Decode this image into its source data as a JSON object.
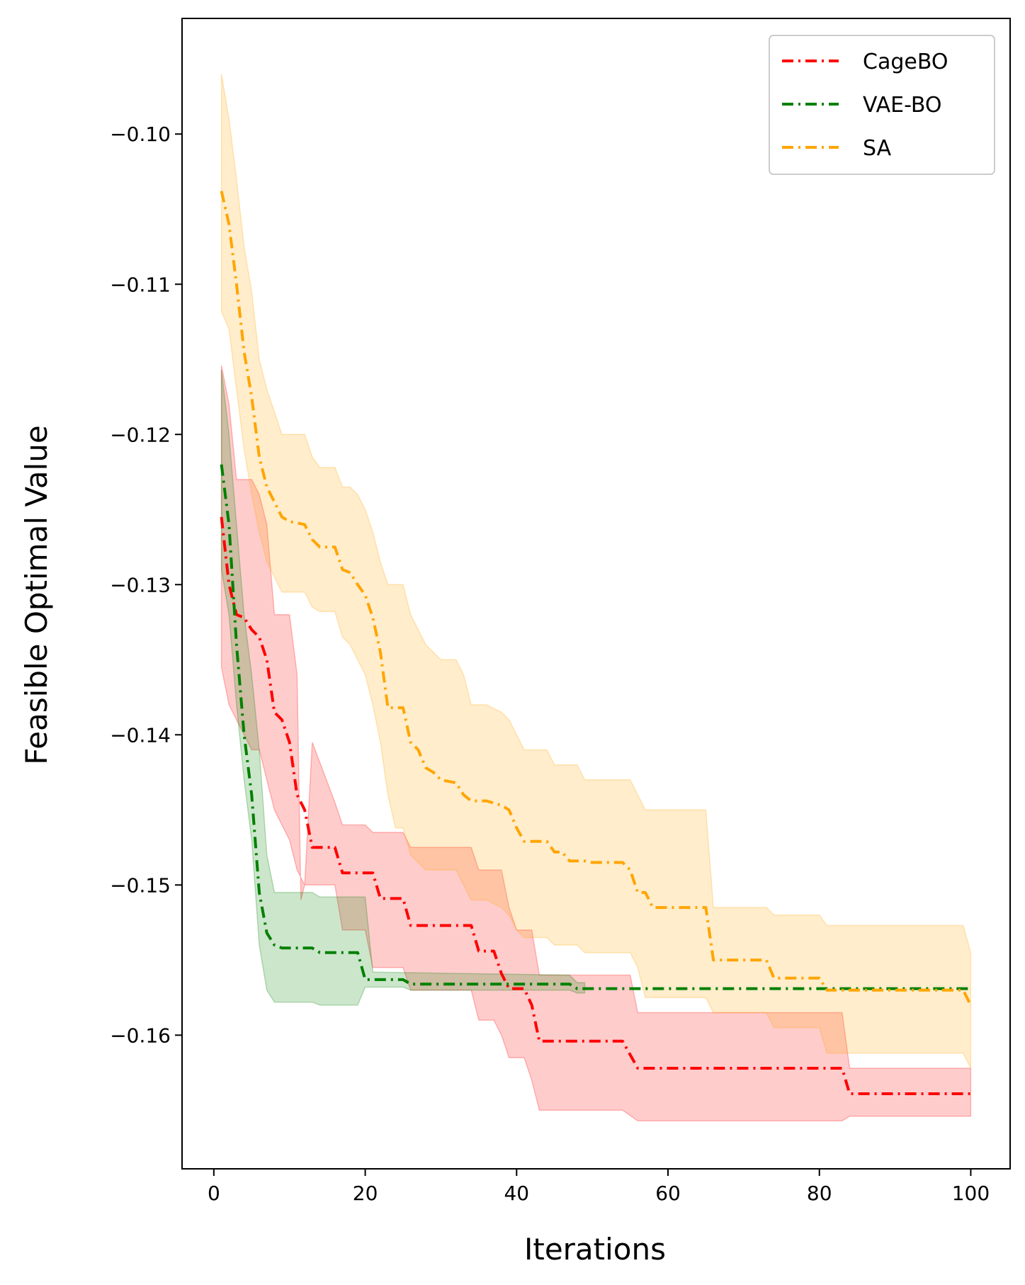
{
  "chart_data": {
    "type": "line",
    "title": "",
    "xlabel": "Iterations",
    "ylabel": "Feasible Optimal Value",
    "xlim": [
      -4.2,
      105.2
    ],
    "ylim": [
      -0.1689,
      -0.0923
    ],
    "xticks": [
      0,
      20,
      40,
      60,
      80,
      100
    ],
    "xtick_labels": [
      "0",
      "20",
      "40",
      "60",
      "80",
      "100"
    ],
    "yticks": [
      -0.1,
      -0.11,
      -0.12,
      -0.13,
      -0.14,
      -0.15,
      -0.16
    ],
    "ytick_labels": [
      "−0.10",
      "−0.11",
      "−0.12",
      "−0.13",
      "−0.14",
      "−0.15",
      "−0.16"
    ],
    "grid": false,
    "legend_position": "top-right",
    "series": [
      {
        "name": "CageBO",
        "color": "#ff0000",
        "fill_alpha": 0.2,
        "mean": [
          [
            1,
            -0.1255
          ],
          [
            2,
            -0.13
          ],
          [
            3,
            -0.132
          ],
          [
            4,
            -0.1322
          ],
          [
            5,
            -0.133
          ],
          [
            6,
            -0.1335
          ],
          [
            7,
            -0.135
          ],
          [
            8,
            -0.1385
          ],
          [
            9,
            -0.139
          ],
          [
            10,
            -0.1405
          ],
          [
            11,
            -0.144
          ],
          [
            12,
            -0.145
          ],
          [
            13,
            -0.1475
          ],
          [
            16,
            -0.1475
          ],
          [
            17,
            -0.1492
          ],
          [
            21,
            -0.1492
          ],
          [
            22,
            -0.1509
          ],
          [
            25,
            -0.1509
          ],
          [
            26,
            -0.1527
          ],
          [
            34,
            -0.1527
          ],
          [
            35,
            -0.1544
          ],
          [
            37,
            -0.1544
          ],
          [
            38,
            -0.1559
          ],
          [
            39,
            -0.1569
          ],
          [
            41,
            -0.1569
          ],
          [
            42,
            -0.158
          ],
          [
            43,
            -0.1604
          ],
          [
            54,
            -0.1604
          ],
          [
            56,
            -0.1622
          ],
          [
            83,
            -0.1622
          ],
          [
            84,
            -0.1639
          ],
          [
            100,
            -0.1639
          ]
        ],
        "upper": [
          [
            1,
            -0.1154
          ],
          [
            2,
            -0.118
          ],
          [
            3,
            -0.123
          ],
          [
            5,
            -0.123
          ],
          [
            6,
            -0.124
          ],
          [
            7,
            -0.126
          ],
          [
            8,
            -0.132
          ],
          [
            10,
            -0.132
          ],
          [
            11,
            -0.136
          ],
          [
            11.5,
            -0.151
          ],
          [
            12,
            -0.15
          ],
          [
            13,
            -0.1405
          ],
          [
            16,
            -0.1445
          ],
          [
            17,
            -0.146
          ],
          [
            20,
            -0.146
          ],
          [
            21,
            -0.1465
          ],
          [
            25,
            -0.1465
          ],
          [
            26,
            -0.1475
          ],
          [
            34,
            -0.1475
          ],
          [
            35,
            -0.149
          ],
          [
            38,
            -0.149
          ],
          [
            39,
            -0.1515
          ],
          [
            40,
            -0.153
          ],
          [
            42,
            -0.153
          ],
          [
            43,
            -0.156
          ],
          [
            55,
            -0.156
          ],
          [
            56,
            -0.1585
          ],
          [
            83,
            -0.1585
          ],
          [
            84,
            -0.1622
          ],
          [
            100,
            -0.1622
          ]
        ],
        "lower": [
          [
            1,
            -0.1355
          ],
          [
            2,
            -0.138
          ],
          [
            3,
            -0.139
          ],
          [
            4,
            -0.14
          ],
          [
            5,
            -0.141
          ],
          [
            6,
            -0.141
          ],
          [
            7,
            -0.143
          ],
          [
            8,
            -0.145
          ],
          [
            9,
            -0.146
          ],
          [
            10,
            -0.147
          ],
          [
            11,
            -0.149
          ],
          [
            12,
            -0.15
          ],
          [
            13,
            -0.15
          ],
          [
            16,
            -0.15
          ],
          [
            17,
            -0.153
          ],
          [
            20,
            -0.153
          ],
          [
            21,
            -0.1555
          ],
          [
            25,
            -0.1555
          ],
          [
            26,
            -0.157
          ],
          [
            34,
            -0.157
          ],
          [
            35,
            -0.159
          ],
          [
            37,
            -0.159
          ],
          [
            38,
            -0.16
          ],
          [
            39,
            -0.1615
          ],
          [
            41,
            -0.1615
          ],
          [
            42,
            -0.163
          ],
          [
            43,
            -0.165
          ],
          [
            54,
            -0.165
          ],
          [
            56,
            -0.1657
          ],
          [
            83,
            -0.1657
          ],
          [
            84,
            -0.1654
          ],
          [
            100,
            -0.1654
          ]
        ]
      },
      {
        "name": "VAE-BO",
        "color": "#008000",
        "fill_alpha": 0.2,
        "mean": [
          [
            1,
            -0.122
          ],
          [
            2,
            -0.126
          ],
          [
            3,
            -0.134
          ],
          [
            4,
            -0.14
          ],
          [
            5,
            -0.144
          ],
          [
            6,
            -0.1505
          ],
          [
            7,
            -0.1532
          ],
          [
            8,
            -0.154
          ],
          [
            9,
            -0.1542
          ],
          [
            13,
            -0.1542
          ],
          [
            14,
            -0.1545
          ],
          [
            19,
            -0.1545
          ],
          [
            20,
            -0.1563
          ],
          [
            25,
            -0.1563
          ],
          [
            26,
            -0.1566
          ],
          [
            47,
            -0.1566
          ],
          [
            48,
            -0.1569
          ],
          [
            100,
            -0.1569
          ]
        ],
        "upper": [
          [
            1,
            -0.1157
          ],
          [
            2,
            -0.12
          ],
          [
            3,
            -0.126
          ],
          [
            4,
            -0.132
          ],
          [
            5,
            -0.136
          ],
          [
            6,
            -0.141
          ],
          [
            7,
            -0.148
          ],
          [
            8,
            -0.1505
          ],
          [
            13,
            -0.1505
          ],
          [
            14,
            -0.1508
          ],
          [
            20,
            -0.1508
          ],
          [
            21,
            -0.1558
          ],
          [
            47,
            -0.156
          ],
          [
            48,
            -0.1565
          ],
          [
            49,
            -0.1565
          ]
        ],
        "lower": [
          [
            1,
            -0.129
          ],
          [
            2,
            -0.132
          ],
          [
            3,
            -0.138
          ],
          [
            4,
            -0.143
          ],
          [
            5,
            -0.147
          ],
          [
            6,
            -0.154
          ],
          [
            7,
            -0.157
          ],
          [
            8,
            -0.1578
          ],
          [
            13,
            -0.1578
          ],
          [
            14,
            -0.158
          ],
          [
            19,
            -0.158
          ],
          [
            20,
            -0.1568
          ],
          [
            25,
            -0.1568
          ],
          [
            26,
            -0.157
          ],
          [
            47,
            -0.157
          ],
          [
            48,
            -0.1572
          ],
          [
            49,
            -0.1572
          ]
        ]
      },
      {
        "name": "SA",
        "color": "#ffa500",
        "fill_alpha": 0.2,
        "mean": [
          [
            1,
            -0.1038
          ],
          [
            2,
            -0.106
          ],
          [
            3,
            -0.11
          ],
          [
            4,
            -0.1145
          ],
          [
            5,
            -0.1175
          ],
          [
            6,
            -0.1215
          ],
          [
            7,
            -0.1235
          ],
          [
            8,
            -0.1245
          ],
          [
            9,
            -0.1255
          ],
          [
            10,
            -0.1258
          ],
          [
            12,
            -0.126
          ],
          [
            13,
            -0.127
          ],
          [
            14,
            -0.1275
          ],
          [
            16,
            -0.1275
          ],
          [
            17,
            -0.129
          ],
          [
            18,
            -0.1292
          ],
          [
            19,
            -0.13
          ],
          [
            20,
            -0.1307
          ],
          [
            21,
            -0.1322
          ],
          [
            22,
            -0.1345
          ],
          [
            23,
            -0.1382
          ],
          [
            25,
            -0.1382
          ],
          [
            26,
            -0.1405
          ],
          [
            27,
            -0.141
          ],
          [
            28,
            -0.1422
          ],
          [
            29,
            -0.1425
          ],
          [
            30,
            -0.143
          ],
          [
            32,
            -0.1432
          ],
          [
            33,
            -0.144
          ],
          [
            34,
            -0.1444
          ],
          [
            36,
            -0.1444
          ],
          [
            38,
            -0.1447
          ],
          [
            39,
            -0.145
          ],
          [
            40,
            -0.1462
          ],
          [
            41,
            -0.1471
          ],
          [
            44,
            -0.1471
          ],
          [
            45,
            -0.1478
          ],
          [
            46,
            -0.1478
          ],
          [
            47,
            -0.1484
          ],
          [
            49,
            -0.1484
          ],
          [
            50,
            -0.1485
          ],
          [
            54,
            -0.1485
          ],
          [
            55,
            -0.149
          ],
          [
            56,
            -0.1505
          ],
          [
            57,
            -0.1505
          ],
          [
            58,
            -0.1515
          ],
          [
            65,
            -0.1515
          ],
          [
            66,
            -0.155
          ],
          [
            73,
            -0.155
          ],
          [
            74,
            -0.1562
          ],
          [
            80,
            -0.1562
          ],
          [
            81,
            -0.157
          ],
          [
            99,
            -0.157
          ],
          [
            100,
            -0.158
          ]
        ],
        "upper": [
          [
            1,
            -0.096
          ],
          [
            2,
            -0.099
          ],
          [
            3,
            -0.103
          ],
          [
            4,
            -0.1075
          ],
          [
            5,
            -0.1105
          ],
          [
            6,
            -0.115
          ],
          [
            7,
            -0.117
          ],
          [
            8,
            -0.1185
          ],
          [
            9,
            -0.12
          ],
          [
            12,
            -0.12
          ],
          [
            13,
            -0.1215
          ],
          [
            14,
            -0.1222
          ],
          [
            16,
            -0.1222
          ],
          [
            17,
            -0.1235
          ],
          [
            18,
            -0.1235
          ],
          [
            19,
            -0.124
          ],
          [
            20,
            -0.125
          ],
          [
            21,
            -0.1265
          ],
          [
            22,
            -0.1285
          ],
          [
            23,
            -0.13
          ],
          [
            25,
            -0.13
          ],
          [
            26,
            -0.132
          ],
          [
            27,
            -0.133
          ],
          [
            28,
            -0.134
          ],
          [
            29,
            -0.1345
          ],
          [
            30,
            -0.135
          ],
          [
            32,
            -0.135
          ],
          [
            33,
            -0.136
          ],
          [
            34,
            -0.138
          ],
          [
            36,
            -0.138
          ],
          [
            38,
            -0.1385
          ],
          [
            39,
            -0.139
          ],
          [
            40,
            -0.14
          ],
          [
            41,
            -0.141
          ],
          [
            44,
            -0.141
          ],
          [
            45,
            -0.142
          ],
          [
            48,
            -0.142
          ],
          [
            49,
            -0.143
          ],
          [
            55,
            -0.143
          ],
          [
            56,
            -0.144
          ],
          [
            57,
            -0.145
          ],
          [
            65,
            -0.145
          ],
          [
            66,
            -0.1515
          ],
          [
            73,
            -0.1515
          ],
          [
            74,
            -0.152
          ],
          [
            80,
            -0.152
          ],
          [
            81,
            -0.1527
          ],
          [
            99,
            -0.1527
          ],
          [
            100,
            -0.1545
          ]
        ],
        "lower": [
          [
            1,
            -0.1118
          ],
          [
            2,
            -0.113
          ],
          [
            3,
            -0.117
          ],
          [
            4,
            -0.121
          ],
          [
            5,
            -0.124
          ],
          [
            6,
            -0.1265
          ],
          [
            7,
            -0.1285
          ],
          [
            8,
            -0.1295
          ],
          [
            9,
            -0.1305
          ],
          [
            12,
            -0.1305
          ],
          [
            13,
            -0.1315
          ],
          [
            14,
            -0.1318
          ],
          [
            16,
            -0.1318
          ],
          [
            17,
            -0.1335
          ],
          [
            18,
            -0.134
          ],
          [
            19,
            -0.135
          ],
          [
            20,
            -0.136
          ],
          [
            21,
            -0.138
          ],
          [
            22,
            -0.1405
          ],
          [
            23,
            -0.144
          ],
          [
            24,
            -0.1462
          ],
          [
            25,
            -0.1462
          ],
          [
            26,
            -0.148
          ],
          [
            27,
            -0.1485
          ],
          [
            28,
            -0.149
          ],
          [
            32,
            -0.149
          ],
          [
            33,
            -0.15
          ],
          [
            34,
            -0.151
          ],
          [
            36,
            -0.151
          ],
          [
            38,
            -0.1515
          ],
          [
            39,
            -0.152
          ],
          [
            40,
            -0.153
          ],
          [
            41,
            -0.1535
          ],
          [
            44,
            -0.1535
          ],
          [
            45,
            -0.154
          ],
          [
            48,
            -0.154
          ],
          [
            49,
            -0.1545
          ],
          [
            55,
            -0.1545
          ],
          [
            56,
            -0.1555
          ],
          [
            57,
            -0.1575
          ],
          [
            65,
            -0.1575
          ],
          [
            66,
            -0.1585
          ],
          [
            73,
            -0.1585
          ],
          [
            74,
            -0.1595
          ],
          [
            80,
            -0.1595
          ],
          [
            81,
            -0.1612
          ],
          [
            99,
            -0.1612
          ],
          [
            100,
            -0.1622
          ]
        ]
      }
    ]
  }
}
